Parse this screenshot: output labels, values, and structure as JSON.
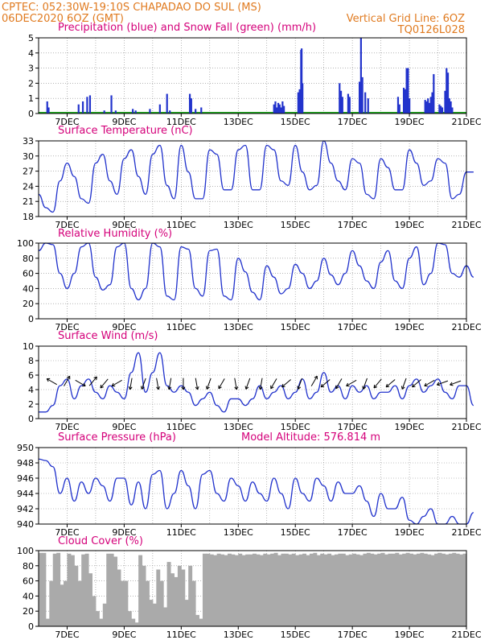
{
  "header": {
    "line1": "CPTEC:   052:30W-19:10S   CHAPADAO DO SUL (MS)",
    "line2_left": "06DEC2020 6OZ (GMT)",
    "line2_right": "Vertical Grid Line: 6OZ",
    "code": "TQ0126L028"
  },
  "colors": {
    "header": "#e07a1f",
    "title": "#d4007a",
    "series": "#2233cc",
    "snow": "#22aa22",
    "cloud": "#aaaaaa",
    "grid": "#888888"
  },
  "x_axis": {
    "start_day": 6,
    "end_day": 21,
    "tick_labels": [
      "7DEC",
      "9DEC",
      "11DEC",
      "13DEC",
      "15DEC",
      "17DEC",
      "19DEC",
      "21DEC"
    ],
    "tick_days": [
      7,
      9,
      11,
      13,
      15,
      17,
      19,
      21
    ]
  },
  "chart_data": [
    {
      "type": "bar",
      "title": "Precipitation (blue) and Snow Fall (green) (mm/h)",
      "ylim": [
        0,
        5
      ],
      "yticks": [
        "0",
        "1",
        "2",
        "3",
        "4",
        "5"
      ],
      "series": [
        {
          "name": "Precipitation",
          "values_xy": [
            [
              6.3,
              0.8
            ],
            [
              6.35,
              0.4
            ],
            [
              7.4,
              0.6
            ],
            [
              7.55,
              0.8
            ],
            [
              7.7,
              1.1
            ],
            [
              7.8,
              1.2
            ],
            [
              8.3,
              0.2
            ],
            [
              8.55,
              1.2
            ],
            [
              8.7,
              0.2
            ],
            [
              9.3,
              0.3
            ],
            [
              9.4,
              0.2
            ],
            [
              9.9,
              0.3
            ],
            [
              10.25,
              0.6
            ],
            [
              10.5,
              1.3
            ],
            [
              10.6,
              0.2
            ],
            [
              11.3,
              1.3
            ],
            [
              11.35,
              1.0
            ],
            [
              11.5,
              0.3
            ],
            [
              11.7,
              0.4
            ],
            [
              14.25,
              0.6
            ],
            [
              14.3,
              0.8
            ],
            [
              14.35,
              0.4
            ],
            [
              14.4,
              0.7
            ],
            [
              14.45,
              0.6
            ],
            [
              14.5,
              0.4
            ],
            [
              14.55,
              0.8
            ],
            [
              14.6,
              0.5
            ],
            [
              15.1,
              1.4
            ],
            [
              15.15,
              1.6
            ],
            [
              15.2,
              4.2
            ],
            [
              15.22,
              4.3
            ],
            [
              15.25,
              2.0
            ],
            [
              16.55,
              2.0
            ],
            [
              16.6,
              1.5
            ],
            [
              16.65,
              1.1
            ],
            [
              16.85,
              1.3
            ],
            [
              16.9,
              1.0
            ],
            [
              16.9,
              1.1
            ],
            [
              17.25,
              2.1
            ],
            [
              17.3,
              5.0
            ],
            [
              17.35,
              2.4
            ],
            [
              17.45,
              1.4
            ],
            [
              17.55,
              1.0
            ],
            [
              18.6,
              1.1
            ],
            [
              18.65,
              0.6
            ],
            [
              18.8,
              1.7
            ],
            [
              18.85,
              1.6
            ],
            [
              18.9,
              3.0
            ],
            [
              18.95,
              3.0
            ],
            [
              19.0,
              1.0
            ],
            [
              19.55,
              0.9
            ],
            [
              19.6,
              0.8
            ],
            [
              19.65,
              1.0
            ],
            [
              19.7,
              0.7
            ],
            [
              19.75,
              1.1
            ],
            [
              19.8,
              1.4
            ],
            [
              19.85,
              2.6
            ],
            [
              20.05,
              0.6
            ],
            [
              20.1,
              0.5
            ],
            [
              20.15,
              0.4
            ],
            [
              20.25,
              1.5
            ],
            [
              20.3,
              3.0
            ],
            [
              20.35,
              2.7
            ],
            [
              20.4,
              1.0
            ],
            [
              20.45,
              0.8
            ],
            [
              20.5,
              0.4
            ]
          ]
        },
        {
          "name": "Snow Fall",
          "values": [
            0
          ]
        }
      ]
    },
    {
      "type": "line",
      "title": "Surface Temperature (nC)",
      "ylim": [
        18,
        35
      ],
      "yticks": [
        "18",
        "21",
        "24",
        "27",
        "30",
        "33"
      ],
      "x_step_hours": 6,
      "series": [
        {
          "values": [
            23,
            20,
            19,
            26,
            30,
            27,
            22,
            21,
            30,
            32,
            26,
            23,
            31,
            33,
            27,
            23,
            32,
            34,
            25,
            22,
            34,
            28,
            22,
            22,
            33,
            32,
            24,
            24,
            33,
            34,
            24,
            24,
            34,
            33,
            26,
            25,
            34,
            28,
            24,
            25,
            35,
            30,
            26,
            24,
            31,
            30,
            23,
            22,
            31,
            29,
            24,
            24,
            33,
            30,
            25,
            26,
            31,
            30,
            22,
            23,
            28,
            28
          ]
        }
      ]
    },
    {
      "type": "line",
      "title": "Relative Humidity (%)",
      "ylim": [
        0,
        100
      ],
      "yticks": [
        "0",
        "20",
        "40",
        "60",
        "80",
        "100"
      ],
      "x_step_hours": 6,
      "series": [
        {
          "values": [
            90,
            100,
            98,
            60,
            40,
            60,
            95,
            100,
            55,
            38,
            45,
            95,
            100,
            40,
            25,
            40,
            100,
            95,
            30,
            25,
            95,
            92,
            40,
            30,
            90,
            92,
            30,
            25,
            80,
            62,
            35,
            25,
            70,
            55,
            33,
            40,
            72,
            60,
            40,
            50,
            80,
            58,
            45,
            60,
            90,
            70,
            50,
            40,
            75,
            90,
            50,
            40,
            80,
            95,
            45,
            60,
            100,
            98,
            60,
            55,
            70,
            55
          ]
        }
      ]
    },
    {
      "type": "line",
      "title": "Surface Wind (m/s)",
      "ylim": [
        0,
        11
      ],
      "yticks": [
        "0",
        "2",
        "4",
        "6",
        "8",
        "10"
      ],
      "x_step_hours": 6,
      "series": [
        {
          "values": [
            1,
            1,
            2,
            5,
            6,
            3,
            5,
            6,
            4,
            3,
            5,
            4,
            3,
            7,
            10,
            4,
            7,
            10,
            5,
            4,
            5,
            4,
            2,
            3,
            4,
            2,
            1,
            3,
            3,
            2,
            3,
            5,
            3,
            4,
            5,
            3,
            4,
            6,
            3,
            4,
            7,
            4,
            5,
            3,
            5,
            4,
            5,
            3,
            4,
            4,
            5,
            3,
            5,
            6,
            4,
            5,
            6,
            4,
            3,
            5,
            5,
            2
          ]
        }
      ],
      "wind_arrows_deg": [
        300,
        30,
        120,
        40,
        220,
        240,
        190,
        200,
        170,
        190,
        180,
        170,
        200,
        210,
        170,
        200,
        190,
        210,
        230,
        200,
        30,
        230,
        210,
        240,
        200,
        220,
        230,
        200,
        230,
        240,
        250,
        250
      ]
    },
    {
      "type": "line",
      "title": "Surface Pressure (hPa)",
      "annotation": "Model Altitude: 576.814 m",
      "ylim": [
        940,
        950
      ],
      "yticks": [
        "940",
        "942",
        "944",
        "946",
        "948",
        "950"
      ],
      "x_step_hours": 6,
      "series": [
        {
          "values": [
            948.5,
            948.3,
            947.5,
            944,
            946,
            943,
            945.5,
            944,
            946,
            945,
            943,
            946,
            946,
            942.5,
            945.5,
            942,
            946.5,
            947,
            942,
            944,
            947,
            945,
            942,
            946.5,
            947,
            944,
            943,
            946,
            945,
            943,
            945.5,
            944,
            943,
            946,
            944,
            942,
            946,
            944,
            943,
            946,
            945,
            943,
            945.5,
            944,
            944,
            945,
            943,
            941,
            944,
            942,
            942,
            943.5,
            940.5,
            940,
            941,
            942,
            938.5,
            939,
            941,
            939,
            938.5,
            941.5
          ]
        }
      ]
    },
    {
      "type": "area",
      "title": "Cloud Cover (%)",
      "ylim": [
        0,
        100
      ],
      "yticks": [
        "0",
        "20",
        "40",
        "60",
        "80",
        "100"
      ],
      "x_step_hours": 3,
      "series": [
        {
          "values": [
            97,
            97,
            10,
            60,
            96,
            97,
            55,
            60,
            96,
            94,
            80,
            60,
            95,
            96,
            70,
            40,
            20,
            10,
            30,
            96,
            96,
            92,
            75,
            60,
            60,
            20,
            10,
            5,
            94,
            80,
            60,
            35,
            30,
            75,
            60,
            25,
            85,
            70,
            65,
            80,
            75,
            35,
            80,
            60,
            15,
            10,
            96,
            96,
            95,
            94,
            96,
            95,
            94,
            96,
            95,
            94,
            96,
            94,
            95,
            95,
            96,
            95,
            94,
            96,
            95,
            96,
            97,
            94,
            96,
            96,
            95,
            96,
            94,
            95,
            96,
            94,
            96,
            97,
            94,
            96,
            95,
            96,
            94,
            95,
            96,
            96,
            94,
            95,
            96,
            95,
            94,
            96,
            97,
            96,
            95,
            96,
            97,
            95,
            96,
            96,
            97,
            95,
            96,
            97,
            96,
            95,
            96,
            97,
            96,
            95,
            94,
            96,
            97,
            96,
            95,
            96,
            97,
            96,
            95,
            96,
            97,
            96
          ]
        }
      ]
    }
  ]
}
